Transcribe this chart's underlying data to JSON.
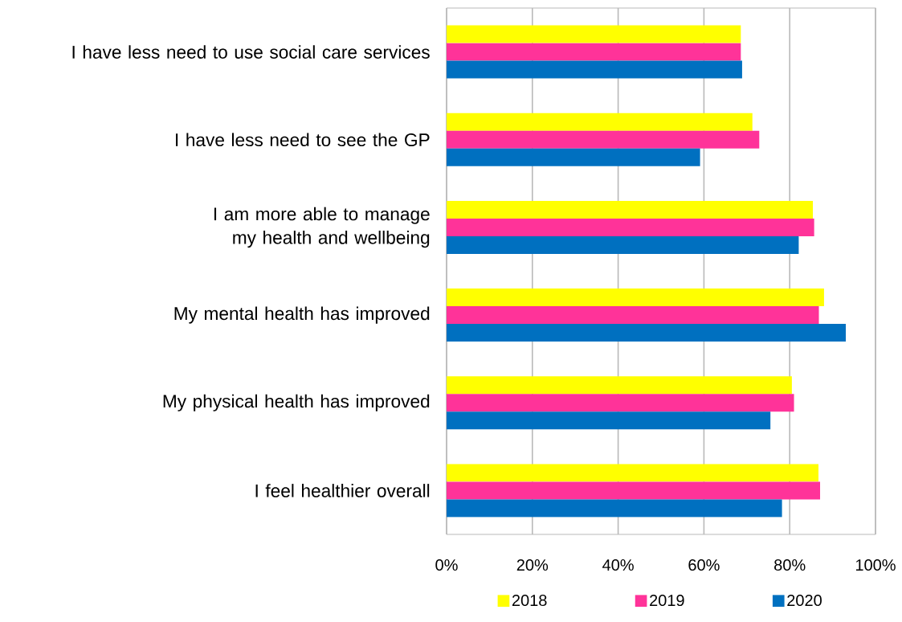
{
  "chart_data": {
    "type": "bar",
    "orientation": "horizontal",
    "categories": [
      "I have less need to use social care services",
      "I have less need to see the GP",
      "I am more able to manage my health and wellbeing",
      "My mental health has improved",
      "My physical health has improved",
      "I feel healthier overall"
    ],
    "series": [
      {
        "name": "2018",
        "color": "#ffff00",
        "values": [
          68.6,
          71.3,
          85.4,
          88.0,
          80.5,
          86.7
        ]
      },
      {
        "name": "2019",
        "color": "#ff3399",
        "values": [
          68.6,
          72.9,
          85.7,
          86.8,
          81.0,
          87.1
        ]
      },
      {
        "name": "2020",
        "color": "#0070c0",
        "values": [
          68.9,
          59.1,
          82.1,
          93.1,
          75.5,
          78.2
        ]
      }
    ],
    "xlim": [
      0,
      100
    ],
    "xticks": [
      {
        "value": 0,
        "label": "0%"
      },
      {
        "value": 20,
        "label": "20%"
      },
      {
        "value": 40,
        "label": "40%"
      },
      {
        "value": 60,
        "label": "60%"
      },
      {
        "value": 80,
        "label": "80%"
      },
      {
        "value": 100,
        "label": "100%"
      }
    ],
    "grid": "x",
    "legend": "bottom"
  }
}
